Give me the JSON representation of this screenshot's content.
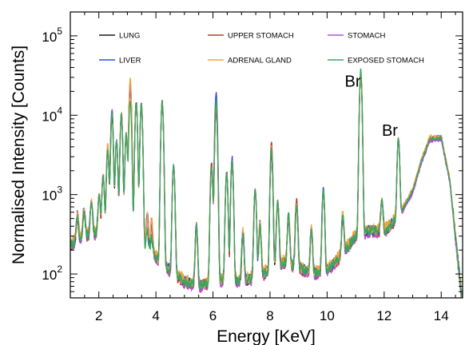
{
  "chart_data": {
    "type": "line",
    "title": "",
    "xlabel": "Energy [KeV]",
    "ylabel": "Normalised Intensity [Counts]",
    "xlim": [
      1.0,
      14.75
    ],
    "ylim": [
      50,
      200000
    ],
    "yscale": "log",
    "grid": false,
    "legend_position": "top",
    "x_ticks": [
      2,
      4,
      6,
      8,
      10,
      12,
      14
    ],
    "x_tick_labels": [
      "2",
      "4",
      "6",
      "8",
      "10",
      "12",
      "14"
    ],
    "y_ticks": [
      100,
      1000,
      10000,
      100000
    ],
    "y_tick_labels": [
      {
        "base": "10",
        "exp": "2"
      },
      {
        "base": "10",
        "exp": "3"
      },
      {
        "base": "10",
        "exp": "4"
      },
      {
        "base": "10",
        "exp": "5"
      }
    ],
    "annotations": [
      {
        "text": "Br",
        "x": 10.9,
        "y": 23000
      },
      {
        "text": "Br",
        "x": 12.2,
        "y": 5500
      }
    ],
    "baseline": [
      [
        1.0,
        230
      ],
      [
        1.5,
        300
      ],
      [
        2.0,
        330
      ],
      [
        2.5,
        280
      ],
      [
        3.0,
        250
      ],
      [
        3.5,
        230
      ],
      [
        4.0,
        160
      ],
      [
        4.5,
        110
      ],
      [
        5.0,
        80
      ],
      [
        5.5,
        70
      ],
      [
        6.0,
        80
      ],
      [
        6.5,
        85
      ],
      [
        7.0,
        80
      ],
      [
        7.5,
        90
      ],
      [
        8.0,
        110
      ],
      [
        8.5,
        140
      ],
      [
        9.0,
        120
      ],
      [
        9.5,
        100
      ],
      [
        10.0,
        110
      ],
      [
        10.5,
        170
      ],
      [
        11.0,
        300
      ],
      [
        11.5,
        350
      ],
      [
        12.0,
        340
      ],
      [
        12.5,
        520
      ],
      [
        13.0,
        1100
      ],
      [
        13.3,
        2600
      ],
      [
        13.6,
        5000
      ],
      [
        14.0,
        5200
      ],
      [
        14.3,
        1500
      ],
      [
        14.5,
        300
      ],
      [
        14.75,
        40
      ]
    ],
    "peaks": [
      {
        "energy": 1.25,
        "intensity": 280,
        "width": 0.035
      },
      {
        "energy": 1.48,
        "intensity": 330,
        "width": 0.035
      },
      {
        "energy": 1.74,
        "intensity": 520,
        "width": 0.035
      },
      {
        "energy": 2.01,
        "intensity": 650,
        "width": 0.035
      },
      {
        "energy": 2.15,
        "intensity": 1400,
        "width": 0.035
      },
      {
        "energy": 2.31,
        "intensity": 3300,
        "width": 0.035
      },
      {
        "energy": 2.46,
        "intensity": 10500,
        "width": 0.035
      },
      {
        "energy": 2.62,
        "intensity": 4500,
        "width": 0.035
      },
      {
        "energy": 2.79,
        "intensity": 10000,
        "width": 0.035
      },
      {
        "energy": 2.96,
        "intensity": 5500,
        "width": 0.035
      },
      {
        "energy": 3.1,
        "intensity": 25000,
        "width": 0.035
      },
      {
        "energy": 3.31,
        "intensity": 14000,
        "width": 0.035
      },
      {
        "energy": 3.49,
        "intensity": 13500,
        "width": 0.035
      },
      {
        "energy": 3.7,
        "intensity": 330,
        "width": 0.035
      },
      {
        "energy": 3.85,
        "intensity": 260,
        "width": 0.035
      },
      {
        "energy": 4.22,
        "intensity": 14500,
        "width": 0.035
      },
      {
        "energy": 4.62,
        "intensity": 2200,
        "width": 0.035
      },
      {
        "energy": 5.42,
        "intensity": 320,
        "width": 0.035
      },
      {
        "energy": 5.95,
        "intensity": 2100,
        "width": 0.035
      },
      {
        "energy": 6.11,
        "intensity": 16000,
        "width": 0.035
      },
      {
        "energy": 6.48,
        "intensity": 1800,
        "width": 0.035
      },
      {
        "energy": 6.67,
        "intensity": 2500,
        "width": 0.035
      },
      {
        "energy": 7.05,
        "intensity": 240,
        "width": 0.035
      },
      {
        "energy": 7.48,
        "intensity": 1050,
        "width": 0.035
      },
      {
        "energy": 7.65,
        "intensity": 320,
        "width": 0.035
      },
      {
        "energy": 8.05,
        "intensity": 3600,
        "width": 0.035
      },
      {
        "energy": 8.27,
        "intensity": 700,
        "width": 0.035
      },
      {
        "energy": 8.65,
        "intensity": 400,
        "width": 0.035
      },
      {
        "energy": 8.93,
        "intensity": 600,
        "width": 0.035
      },
      {
        "energy": 9.45,
        "intensity": 250,
        "width": 0.035
      },
      {
        "energy": 9.87,
        "intensity": 1000,
        "width": 0.035
      },
      {
        "energy": 10.55,
        "intensity": 350,
        "width": 0.035
      },
      {
        "energy": 11.18,
        "intensity": 32000,
        "width": 0.035
      },
      {
        "energy": 11.92,
        "intensity": 520,
        "width": 0.035
      },
      {
        "energy": 12.5,
        "intensity": 4600,
        "width": 0.035
      }
    ],
    "series": [
      {
        "name": "LUNG",
        "color": "#1a1a1a",
        "scale": 1.0,
        "noise": 0.16,
        "peak_scales": {
          "2.46": 0.85,
          "3.10": 0.95,
          "6.11": 0.78,
          "8.05": 0.85,
          "8.93": 1.1
        }
      },
      {
        "name": "UPPER STOMACH",
        "color": "#c0392b",
        "scale": 0.98,
        "noise": 0.18,
        "peak_scales": {
          "3.10": 1.05,
          "5.95": 1.2,
          "6.11": 0.72,
          "8.05": 1.2,
          "8.93": 1.25
        }
      },
      {
        "name": "STOMACH",
        "color": "#b84ddf",
        "scale": 0.95,
        "noise": 0.15,
        "peak_scales": {
          "2.15": 1.1,
          "2.46": 1.15,
          "3.10": 0.85,
          "6.11": 0.85
        }
      },
      {
        "name": "LIVER",
        "color": "#2f4fd8",
        "scale": 1.03,
        "noise": 0.15,
        "peak_scales": {
          "2.46": 1.05,
          "6.11": 1.2,
          "6.67": 1.15,
          "9.87": 1.15
        }
      },
      {
        "name": "ADRENAL GLAND",
        "color": "#f2a341",
        "scale": 1.06,
        "noise": 0.18,
        "peak_scales": {
          "2.31": 1.2,
          "3.10": 1.1,
          "6.11": 0.9,
          "8.05": 1.05
        }
      },
      {
        "name": "EXPOSED STOMACH",
        "color": "#3aa55c",
        "scale": 1.0,
        "noise": 0.14,
        "peak_scales": {
          "3.10": 0.6,
          "3.70": 0.4,
          "3.85": 0.4,
          "6.11": 0.95,
          "11.18": 1.15
        }
      }
    ]
  }
}
